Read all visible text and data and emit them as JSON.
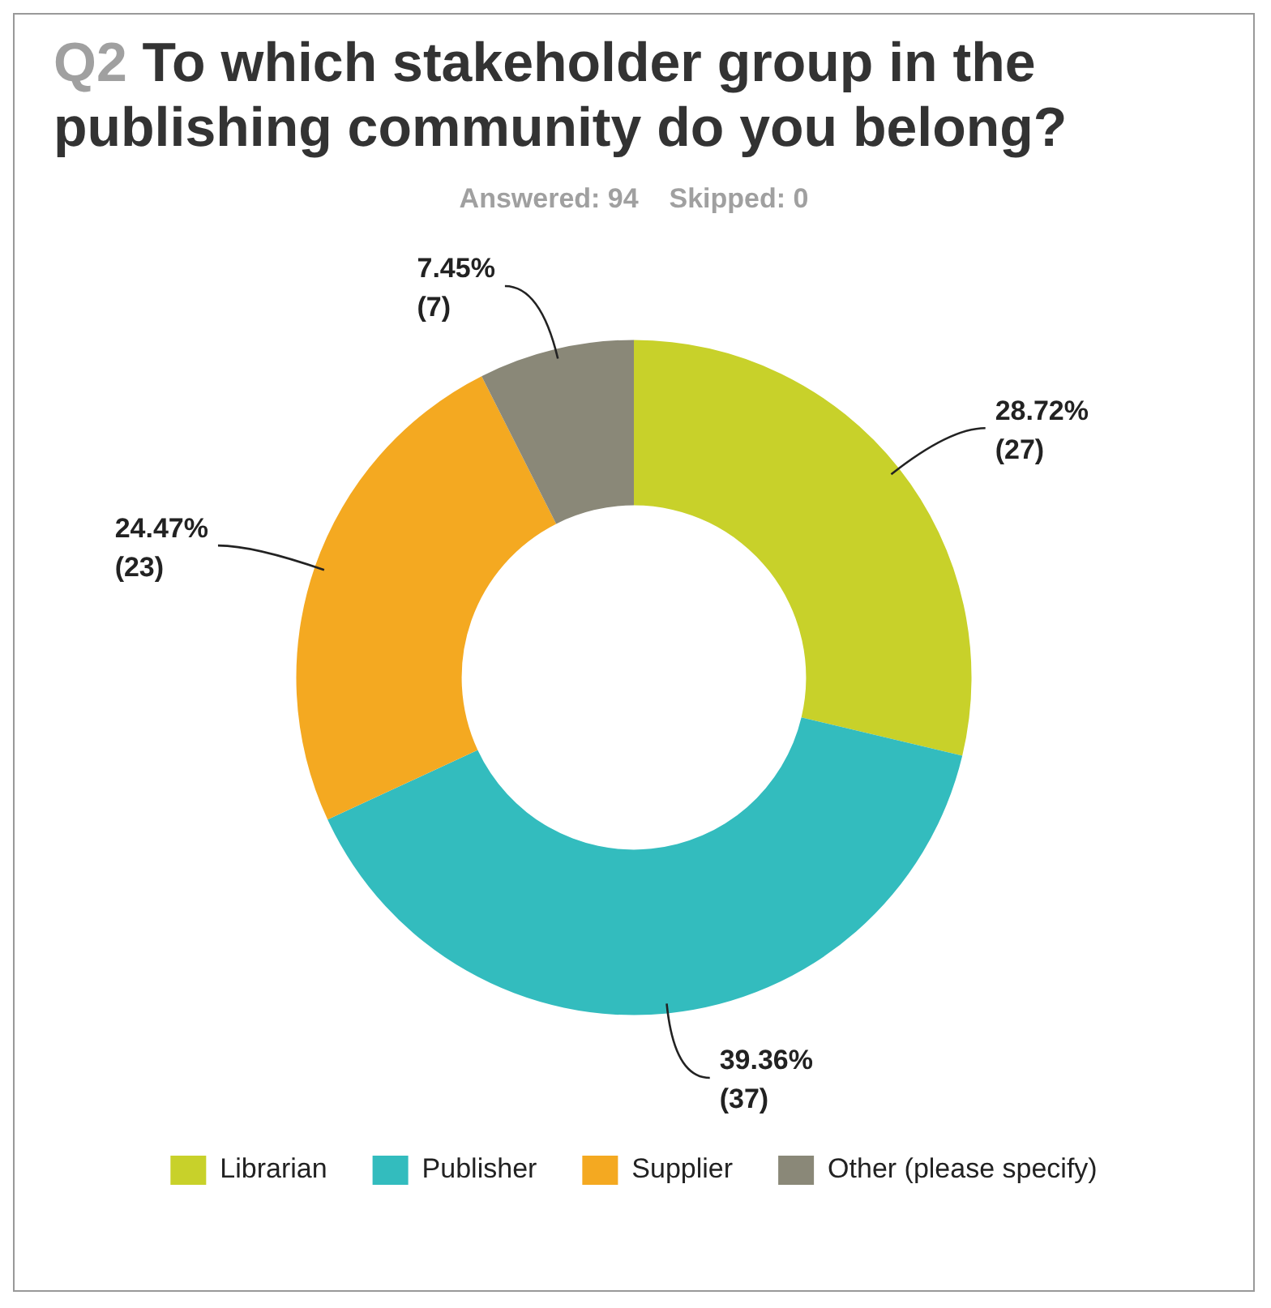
{
  "chart_data": {
    "type": "donut",
    "title": "Q2 To which stakeholder group in the publishing community do you belong?",
    "subtitle": "Answered: 94    Skipped: 0",
    "categories": [
      "Librarian",
      "Publisher",
      "Supplier",
      "Other (please specify)"
    ],
    "values": [
      27,
      37,
      23,
      7
    ],
    "colors": [
      "#c8d12a",
      "#33bcbe",
      "#f4a921",
      "#8a8878"
    ],
    "value_labels": [
      "28.72%\n(27)",
      "39.36%\n(37)",
      "24.47%\n(23)",
      "7.45%\n(7)"
    ],
    "legend": "bottom"
  }
}
